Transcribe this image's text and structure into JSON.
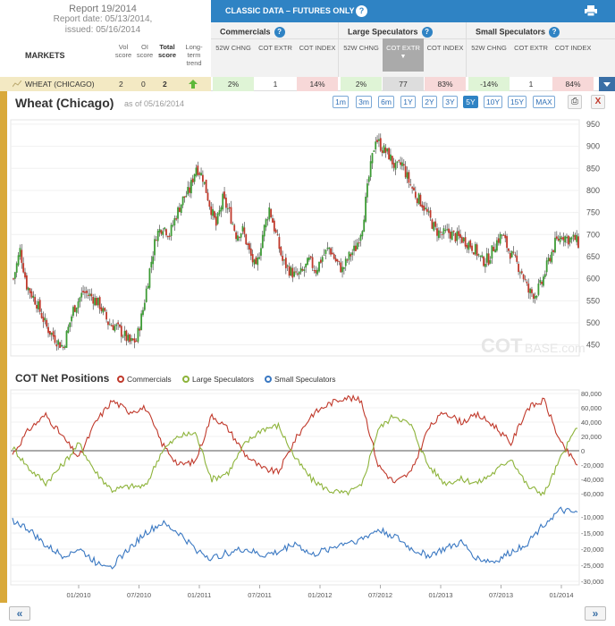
{
  "report": {
    "title": "Report 19/2014",
    "date_line": "Report date: 05/13/2014,",
    "issued_line": "issued: 05/16/2014"
  },
  "columns": {
    "markets": "MARKETS",
    "vol": "Vol score",
    "oi": "OI score",
    "total": "Total score",
    "trend": "Long-term trend"
  },
  "classic": {
    "title": "CLASSIC DATA – FUTURES ONLY",
    "help": "?"
  },
  "groups": [
    {
      "name": "Commercials",
      "help": "?",
      "cols": [
        "52W CHNG",
        "COT EXTR",
        "COT INDEX"
      ]
    },
    {
      "name": "Large Speculators",
      "help": "?",
      "cols": [
        "52W CHNG",
        "COT EXTR",
        "COT INDEX"
      ]
    },
    {
      "name": "Small Speculators",
      "help": "?",
      "cols": [
        "52W CHNG",
        "COT EXTR",
        "COT INDEX"
      ]
    }
  ],
  "row": {
    "market": "WHEAT (CHICAGO)",
    "vol": "2",
    "oi": "0",
    "total": "2",
    "values": [
      "2%",
      "1",
      "14%",
      "2%",
      "77",
      "83%",
      "-14%",
      "1",
      "84%"
    ]
  },
  "chart": {
    "title": "Wheat (Chicago)",
    "as_of": "as of 05/16/2014",
    "ranges": [
      "1m",
      "3m",
      "6m",
      "1Y",
      "2Y",
      "3Y",
      "5Y",
      "10Y",
      "15Y",
      "MAX"
    ],
    "active_range": "5Y",
    "print_glyph": "⎙",
    "close_glyph": "X",
    "watermark_cot": "COT",
    "watermark_base": "BASE.com"
  },
  "cot": {
    "title": "COT Net Positions",
    "legend": [
      "Commercials",
      "Large Speculators",
      "Small Speculators"
    ],
    "colors": [
      "#c0392b",
      "#8db33a",
      "#3a78c2"
    ]
  },
  "nav": {
    "prev": "«",
    "next": "»"
  },
  "chart_data": [
    {
      "type": "candlestick",
      "title": "Wheat (Chicago)",
      "ylim": [
        425,
        960
      ],
      "y_ticks": [
        "950",
        "900",
        "850",
        "800",
        "750",
        "700",
        "650",
        "600",
        "550",
        "500",
        "450"
      ],
      "x_ticks": [
        "01/2010",
        "07/2010",
        "01/2011",
        "07/2011",
        "01/2012",
        "07/2012",
        "01/2013",
        "07/2013",
        "01/2014"
      ],
      "x_span": [
        "07/2009",
        "05/2014"
      ],
      "approx_close_keypoints": [
        [
          0,
          600
        ],
        [
          4,
          665
        ],
        [
          8,
          585
        ],
        [
          14,
          545
        ],
        [
          20,
          490
        ],
        [
          26,
          460
        ],
        [
          30,
          445
        ],
        [
          36,
          530
        ],
        [
          42,
          570
        ],
        [
          47,
          560
        ],
        [
          52,
          540
        ],
        [
          57,
          500
        ],
        [
          62,
          490
        ],
        [
          66,
          475
        ],
        [
          70,
          455
        ],
        [
          74,
          460
        ],
        [
          78,
          530
        ],
        [
          82,
          620
        ],
        [
          86,
          700
        ],
        [
          90,
          720
        ],
        [
          94,
          700
        ],
        [
          98,
          745
        ],
        [
          102,
          780
        ],
        [
          106,
          800
        ],
        [
          110,
          855
        ],
        [
          114,
          830
        ],
        [
          118,
          770
        ],
        [
          122,
          720
        ],
        [
          126,
          780
        ],
        [
          130,
          750
        ],
        [
          134,
          700
        ],
        [
          138,
          710
        ],
        [
          142,
          660
        ],
        [
          146,
          620
        ],
        [
          150,
          700
        ],
        [
          154,
          760
        ],
        [
          158,
          700
        ],
        [
          162,
          640
        ],
        [
          166,
          620
        ],
        [
          170,
          605
        ],
        [
          174,
          615
        ],
        [
          178,
          640
        ],
        [
          182,
          620
        ],
        [
          186,
          650
        ],
        [
          190,
          670
        ],
        [
          194,
          640
        ],
        [
          198,
          620
        ],
        [
          202,
          650
        ],
        [
          206,
          670
        ],
        [
          210,
          720
        ],
        [
          214,
          830
        ],
        [
          218,
          920
        ],
        [
          222,
          895
        ],
        [
          226,
          880
        ],
        [
          230,
          850
        ],
        [
          234,
          860
        ],
        [
          238,
          820
        ],
        [
          242,
          790
        ],
        [
          246,
          770
        ],
        [
          250,
          740
        ],
        [
          254,
          710
        ],
        [
          258,
          700
        ],
        [
          262,
          705
        ],
        [
          266,
          695
        ],
        [
          270,
          690
        ],
        [
          274,
          680
        ],
        [
          278,
          665
        ],
        [
          282,
          640
        ],
        [
          286,
          645
        ],
        [
          290,
          680
        ],
        [
          294,
          700
        ],
        [
          298,
          665
        ],
        [
          302,
          640
        ],
        [
          306,
          615
        ],
        [
          310,
          570
        ],
        [
          314,
          565
        ],
        [
          318,
          590
        ],
        [
          322,
          640
        ],
        [
          326,
          680
        ],
        [
          330,
          700
        ],
        [
          334,
          690
        ],
        [
          338,
          690
        ],
        [
          340,
          680
        ]
      ]
    },
    {
      "type": "line",
      "title": "COT Net Positions",
      "y_ticks": [
        "80,000",
        "60,000",
        "40,000",
        "20,000",
        "0",
        "-20,000",
        "-40,000",
        "-60,000"
      ],
      "ylim": [
        -60000,
        80000
      ],
      "series": [
        {
          "name": "Commercials",
          "keypoints": [
            [
              0,
              -5000
            ],
            [
              10,
              30000
            ],
            [
              20,
              50000
            ],
            [
              30,
              20000
            ],
            [
              40,
              -10000
            ],
            [
              50,
              40000
            ],
            [
              60,
              70000
            ],
            [
              70,
              55000
            ],
            [
              80,
              60000
            ],
            [
              90,
              10000
            ],
            [
              100,
              -20000
            ],
            [
              110,
              -15000
            ],
            [
              120,
              50000
            ],
            [
              130,
              30000
            ],
            [
              140,
              -5000
            ],
            [
              150,
              -25000
            ],
            [
              160,
              -30000
            ],
            [
              170,
              15000
            ],
            [
              180,
              50000
            ],
            [
              190,
              65000
            ],
            [
              200,
              75000
            ],
            [
              210,
              70000
            ],
            [
              220,
              -20000
            ],
            [
              230,
              -45000
            ],
            [
              240,
              -30000
            ],
            [
              250,
              30000
            ],
            [
              260,
              55000
            ],
            [
              270,
              40000
            ],
            [
              280,
              50000
            ],
            [
              290,
              35000
            ],
            [
              300,
              10000
            ],
            [
              310,
              60000
            ],
            [
              320,
              70000
            ],
            [
              330,
              10000
            ],
            [
              340,
              -20000
            ]
          ]
        },
        {
          "name": "Large Speculators",
          "keypoints": [
            [
              0,
              5000
            ],
            [
              10,
              -25000
            ],
            [
              20,
              -45000
            ],
            [
              30,
              -20000
            ],
            [
              40,
              10000
            ],
            [
              50,
              -30000
            ],
            [
              60,
              -55000
            ],
            [
              70,
              -50000
            ],
            [
              80,
              -50000
            ],
            [
              90,
              0
            ],
            [
              100,
              20000
            ],
            [
              110,
              25000
            ],
            [
              120,
              -40000
            ],
            [
              130,
              -30000
            ],
            [
              140,
              10000
            ],
            [
              150,
              30000
            ],
            [
              160,
              35000
            ],
            [
              170,
              -10000
            ],
            [
              180,
              -40000
            ],
            [
              190,
              -55000
            ],
            [
              200,
              -60000
            ],
            [
              210,
              -50000
            ],
            [
              220,
              30000
            ],
            [
              230,
              50000
            ],
            [
              240,
              35000
            ],
            [
              250,
              -20000
            ],
            [
              260,
              -45000
            ],
            [
              270,
              -40000
            ],
            [
              280,
              -45000
            ],
            [
              290,
              -30000
            ],
            [
              300,
              -10000
            ],
            [
              310,
              -50000
            ],
            [
              320,
              -60000
            ],
            [
              330,
              -10000
            ],
            [
              340,
              35000
            ]
          ]
        },
        {
          "name": "Small Speculators",
          "ylim": [
            -30000,
            -5000
          ],
          "y_ticks": [
            "-10,000",
            "-15,000",
            "-20,000",
            "-25,000",
            "-30,000"
          ],
          "keypoints": [
            [
              0,
              -11000
            ],
            [
              10,
              -14000
            ],
            [
              20,
              -19000
            ],
            [
              30,
              -22000
            ],
            [
              40,
              -20000
            ],
            [
              50,
              -24000
            ],
            [
              60,
              -25000
            ],
            [
              70,
              -20000
            ],
            [
              80,
              -15000
            ],
            [
              90,
              -12000
            ],
            [
              100,
              -15000
            ],
            [
              110,
              -20000
            ],
            [
              120,
              -23000
            ],
            [
              130,
              -21000
            ],
            [
              140,
              -20000
            ],
            [
              150,
              -22000
            ],
            [
              160,
              -21000
            ],
            [
              170,
              -18000
            ],
            [
              180,
              -22000
            ],
            [
              190,
              -20000
            ],
            [
              200,
              -18000
            ],
            [
              210,
              -17000
            ],
            [
              220,
              -14000
            ],
            [
              230,
              -16000
            ],
            [
              240,
              -20000
            ],
            [
              250,
              -22000
            ],
            [
              260,
              -20000
            ],
            [
              270,
              -18000
            ],
            [
              280,
              -23000
            ],
            [
              290,
              -24000
            ],
            [
              300,
              -21000
            ],
            [
              310,
              -18000
            ],
            [
              320,
              -12000
            ],
            [
              330,
              -8000
            ],
            [
              340,
              -9000
            ]
          ]
        }
      ]
    }
  ]
}
